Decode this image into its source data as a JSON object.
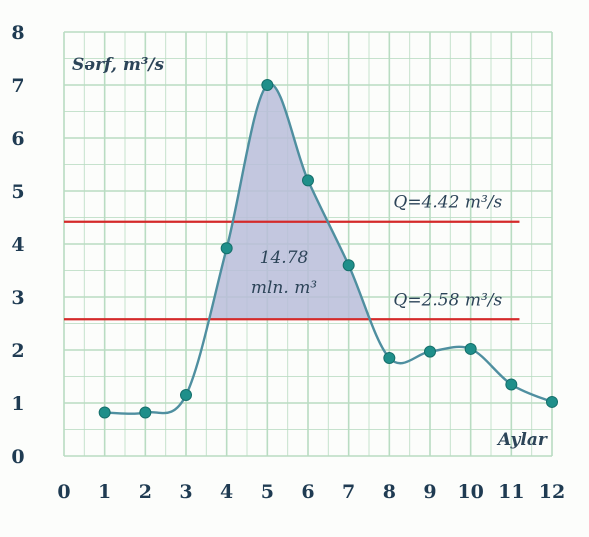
{
  "chart_data": {
    "type": "line",
    "title": "",
    "xlabel": "Aylar",
    "ylabel": "Sərf, m³/s",
    "xlim": [
      0,
      12
    ],
    "ylim": [
      0,
      8
    ],
    "x_ticks": [
      "0",
      "1",
      "2",
      "3",
      "4",
      "5",
      "6",
      "7",
      "8",
      "9",
      "10",
      "11",
      "12"
    ],
    "y_ticks": [
      "0",
      "1",
      "2",
      "3",
      "4",
      "5",
      "6",
      "7",
      "8"
    ],
    "grid": true,
    "series": [
      {
        "x": [
          1,
          2,
          3,
          4,
          5,
          6,
          7,
          8,
          9,
          10,
          11,
          12
        ],
        "values": [
          0.82,
          0.82,
          1.15,
          3.92,
          7.0,
          5.2,
          3.6,
          1.85,
          1.97,
          2.02,
          1.35,
          1.02
        ]
      }
    ],
    "reference_lines": [
      {
        "y": 4.42,
        "label": "Q=4.42 m³/s",
        "color": "#d42a2a"
      },
      {
        "y": 2.58,
        "label": "Q=2.58 m³/s",
        "color": "#d42a2a"
      }
    ],
    "shaded_area": {
      "label_line1": "14.78",
      "label_line2": "mln. m³",
      "fill": "#b9bdd9"
    },
    "colors": {
      "line": "#4f8fa0",
      "marker": "#1f8f8a",
      "grid": "#b9dcc2",
      "text": "#1f3b52"
    }
  }
}
